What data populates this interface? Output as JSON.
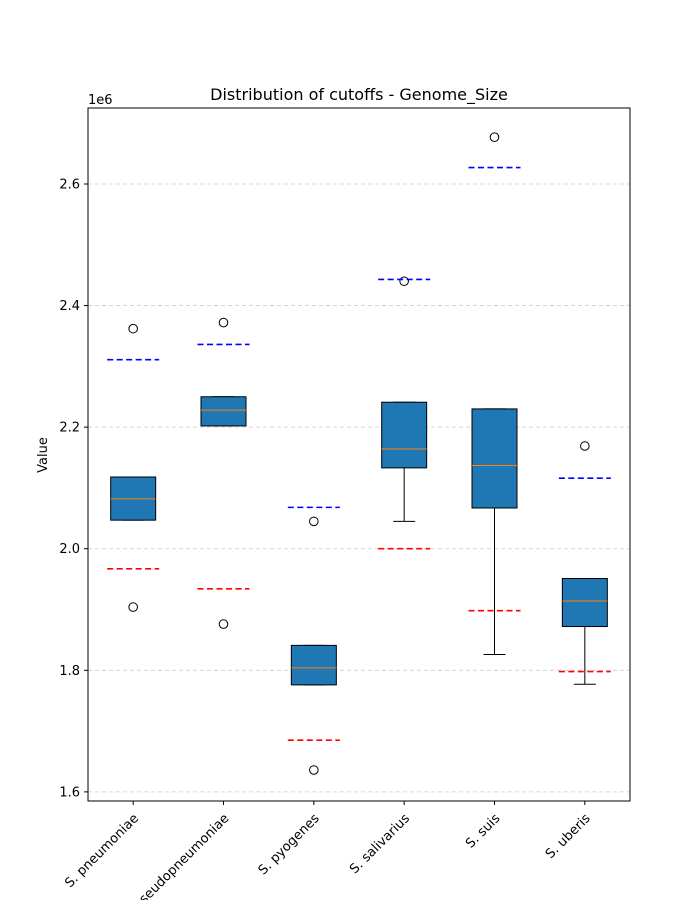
{
  "chart_data": {
    "type": "box",
    "title": "Distribution of cutoffs - Genome_Size",
    "xlabel": "",
    "ylabel": "Value",
    "y_offset_label": "1e6",
    "y_scale_factor": 1000000,
    "ylim": [
      1.585,
      2.725
    ],
    "yticks": [
      1.6,
      1.8,
      2.0,
      2.2,
      2.4,
      2.6
    ],
    "ytick_labels": [
      "1.6",
      "1.8",
      "2.0",
      "2.2",
      "2.4",
      "2.6"
    ],
    "grid": "horizontal dashed",
    "categories": [
      "S. pneumoniae",
      "S. pseudopneumoniae",
      "S. pyogenes",
      "S. salivarius",
      "S. suis",
      "S. uberis"
    ],
    "boxes": [
      {
        "whislo": 2.047,
        "q1": 2.047,
        "med": 2.082,
        "q3": 2.118,
        "whishi": 2.118,
        "fliers": [
          2.362,
          1.904
        ],
        "lower_cutoff": 1.967,
        "upper_cutoff": 2.311
      },
      {
        "whislo": 2.202,
        "q1": 2.202,
        "med": 2.228,
        "q3": 2.25,
        "whishi": 2.25,
        "fliers": [
          2.372,
          1.876
        ],
        "lower_cutoff": 1.934,
        "upper_cutoff": 2.336
      },
      {
        "whislo": 1.776,
        "q1": 1.776,
        "med": 1.804,
        "q3": 1.841,
        "whishi": 1.841,
        "fliers": [
          2.045,
          1.636
        ],
        "lower_cutoff": 1.685,
        "upper_cutoff": 2.068
      },
      {
        "whislo": 2.045,
        "q1": 2.133,
        "med": 2.164,
        "q3": 2.241,
        "whishi": 2.241,
        "fliers": [
          2.44
        ],
        "lower_cutoff": 2.0,
        "upper_cutoff": 2.443
      },
      {
        "whislo": 1.826,
        "q1": 2.067,
        "med": 2.137,
        "q3": 2.23,
        "whishi": 2.23,
        "fliers": [
          2.677
        ],
        "lower_cutoff": 1.898,
        "upper_cutoff": 2.627
      },
      {
        "whislo": 1.777,
        "q1": 1.872,
        "med": 1.914,
        "q3": 1.951,
        "whishi": 1.951,
        "fliers": [
          2.169
        ],
        "lower_cutoff": 1.798,
        "upper_cutoff": 2.116
      }
    ],
    "colors": {
      "box_fill": "#1f77b4",
      "median": "#ff7f0e",
      "lower_cutoff": "#ff0000",
      "upper_cutoff": "#0000ff",
      "grid": "#cccccc"
    }
  }
}
